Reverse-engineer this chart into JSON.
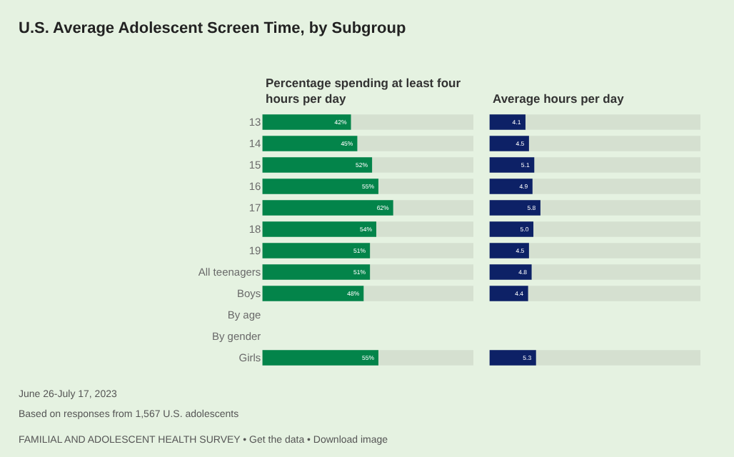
{
  "chart_data": [
    {
      "type": "bar",
      "orientation": "horizontal",
      "title": "U.S. Average Adolescent Screen Time, by Subgroup",
      "subtitle": "Percentage spending at least four hours per day",
      "categories": [
        "13",
        "14",
        "15",
        "16",
        "17",
        "18",
        "19",
        "All teenagers",
        "Boys",
        "By age",
        "By gender",
        "Girls"
      ],
      "values": [
        42,
        45,
        52,
        55,
        62,
        54,
        51,
        51,
        48,
        null,
        null,
        55
      ],
      "value_labels": [
        "42%",
        "45%",
        "52%",
        "55%",
        "62%",
        "54%",
        "51%",
        "51%",
        "48%",
        null,
        null,
        "55%"
      ],
      "color": "#03844a",
      "xlim": [
        0,
        100
      ],
      "tick_labels": "y",
      "grid": false,
      "annotations": [
        "June 26-July 17, 2023",
        "Based on responses from 1,567 U.S. adolescents",
        "FAMILIAL AND ADOLESCENT HEALTH SURVEY • Get the data • Download image"
      ]
    },
    {
      "type": "bar",
      "orientation": "horizontal",
      "title": "Average hours per day",
      "values": [
        4.1,
        4.5,
        5.1,
        4.9,
        5.8,
        5.0,
        4.5,
        4.8,
        4.4,
        null,
        null,
        5.3
      ],
      "value_labels": [
        "4.1",
        "4.5",
        "5.1",
        "4.9",
        "5.8",
        "5.0",
        "4.5",
        "4.8",
        "4.4",
        null,
        null,
        "5.3"
      ],
      "color": "#0d2166",
      "xlim": [
        0,
        24
      ],
      "tick_labels": false,
      "grid": false
    }
  ]
}
